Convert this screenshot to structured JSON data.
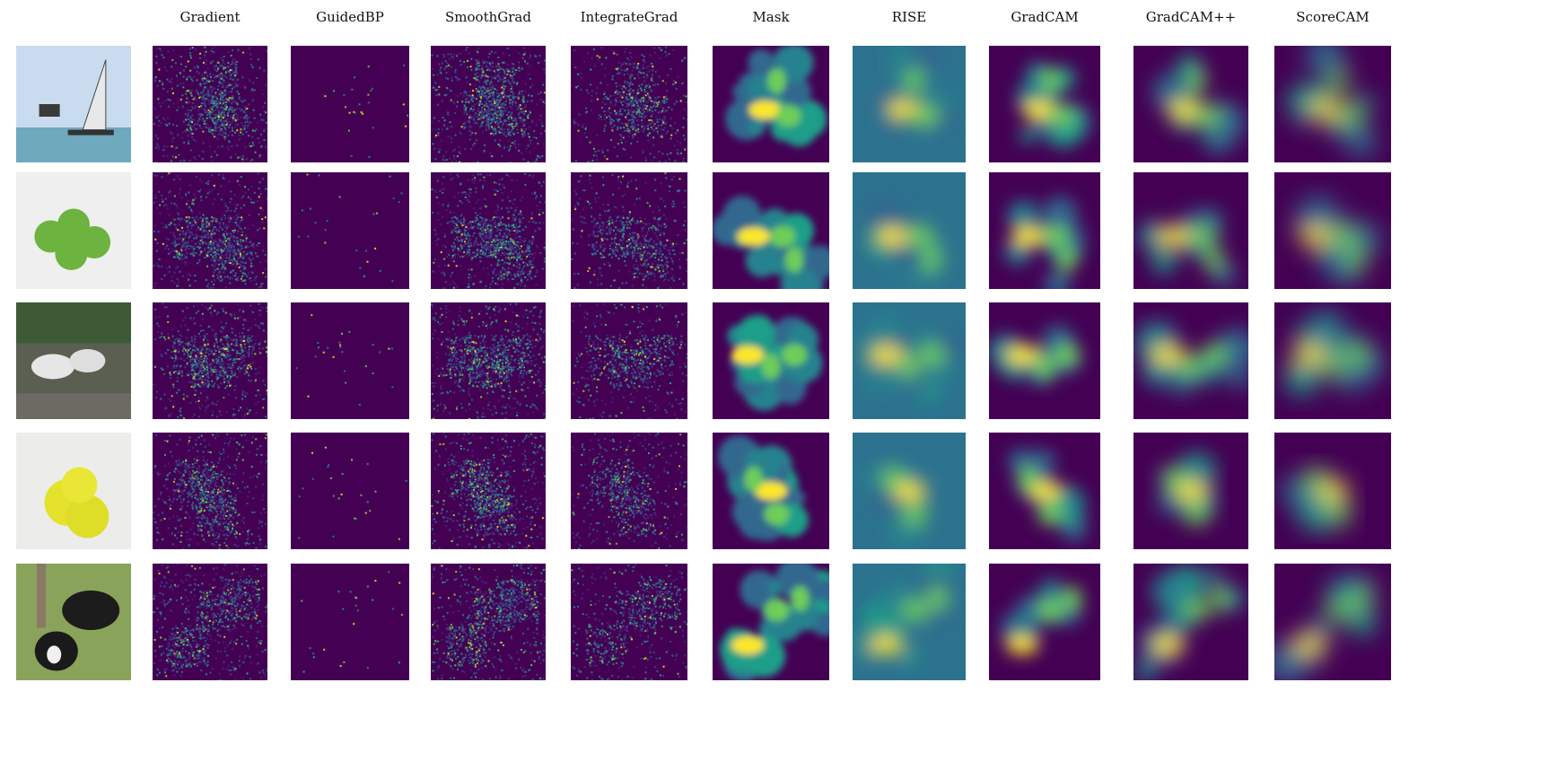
{
  "columns": {
    "labels": [
      "Gradient",
      "GuidedBP",
      "SmoothGrad",
      "IntegrateGrad",
      "Mask",
      "RISE",
      "GradCAM",
      "GradCAM++",
      "ScoreCAM"
    ]
  },
  "rows": [
    {
      "subject": "sailboats-on-sea"
    },
    {
      "subject": "green-apples"
    },
    {
      "subject": "white-wolves-on-rocks"
    },
    {
      "subject": "penn-tennis-balls"
    },
    {
      "subject": "dogs-on-grass"
    }
  ],
  "colors": {
    "viridis_dark": "#440154",
    "viridis_mid": "#21918c",
    "viridis_green": "#5ec962",
    "viridis_yellow": "#fde725"
  }
}
